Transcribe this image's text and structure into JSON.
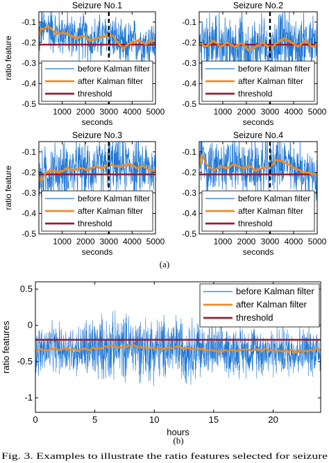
{
  "chart_data": [
    {
      "type": "line",
      "panel": "a1",
      "title": "Seizure No.1",
      "xlabel": "seconds",
      "ylabel": "ratio feature",
      "xlim": [
        0,
        5000
      ],
      "ylim": [
        -0.5,
        -0.05
      ],
      "xticks": [
        1000,
        2000,
        3000,
        4000,
        5000
      ],
      "yticks": [
        -0.1,
        -0.2,
        -0.3,
        -0.4,
        -0.5
      ],
      "seizure_marker_x": 3000,
      "threshold": -0.21,
      "legend": [
        "before Kalman filter",
        "after Kalman filter",
        "threshold"
      ],
      "legend_position": "bottom",
      "series": [
        {
          "name": "before Kalman filter",
          "color": "#1f77d4",
          "noise": 0.1
        },
        {
          "name": "after Kalman filter",
          "color": "#f08a24",
          "x": [
            0,
            100,
            200,
            400,
            600,
            800,
            1000,
            1300,
            1600,
            1900,
            2200,
            2500,
            2800,
            3000,
            3200,
            3400,
            3600,
            3800,
            4000,
            4300,
            4600,
            4800,
            5000
          ],
          "y": [
            -0.17,
            -0.13,
            -0.14,
            -0.12,
            -0.14,
            -0.16,
            -0.15,
            -0.16,
            -0.18,
            -0.17,
            -0.19,
            -0.18,
            -0.17,
            -0.16,
            -0.17,
            -0.2,
            -0.23,
            -0.21,
            -0.2,
            -0.19,
            -0.21,
            -0.19,
            -0.2
          ]
        },
        {
          "name": "threshold",
          "color": "#9b1b30",
          "x": [
            0,
            5000
          ],
          "y": [
            -0.21,
            -0.21
          ]
        }
      ]
    },
    {
      "type": "line",
      "panel": "a2",
      "title": "Seizure No.2",
      "xlabel": "seconds",
      "ylabel": "",
      "xlim": [
        0,
        5000
      ],
      "ylim": [
        -0.5,
        -0.05
      ],
      "xticks": [
        1000,
        2000,
        3000,
        4000,
        5000
      ],
      "yticks": [
        -0.1,
        -0.2,
        -0.3,
        -0.4,
        -0.5
      ],
      "seizure_marker_x": 3000,
      "threshold": -0.21,
      "legend": [
        "before Kalman filter",
        "after Kalman filter",
        "threshold"
      ],
      "legend_position": "bottom",
      "series": [
        {
          "name": "before Kalman filter",
          "color": "#1f77d4",
          "noise": 0.13
        },
        {
          "name": "after Kalman filter",
          "color": "#f08a24",
          "x": [
            0,
            300,
            600,
            900,
            1200,
            1500,
            1800,
            2100,
            2400,
            2700,
            3000,
            3300,
            3600,
            3900,
            4200,
            4500,
            4800,
            5000
          ],
          "y": [
            -0.2,
            -0.22,
            -0.19,
            -0.22,
            -0.2,
            -0.22,
            -0.2,
            -0.24,
            -0.22,
            -0.2,
            -0.23,
            -0.2,
            -0.18,
            -0.2,
            -0.22,
            -0.19,
            -0.22,
            -0.21
          ]
        },
        {
          "name": "threshold",
          "color": "#9b1b30",
          "x": [
            0,
            5000
          ],
          "y": [
            -0.21,
            -0.21
          ]
        }
      ]
    },
    {
      "type": "line",
      "panel": "a3",
      "title": "Seizure No.3",
      "xlabel": "seconds",
      "ylabel": "ratio feature",
      "xlim": [
        0,
        5000
      ],
      "ylim": [
        -0.5,
        -0.05
      ],
      "xticks": [
        1000,
        2000,
        3000,
        4000,
        5000
      ],
      "yticks": [
        -0.1,
        -0.2,
        -0.3,
        -0.4,
        -0.5
      ],
      "seizure_marker_x": 3000,
      "threshold": -0.21,
      "legend": [
        "before Kalman filter",
        "after Kalman filter",
        "threshold"
      ],
      "legend_position": "bottom",
      "series": [
        {
          "name": "before Kalman filter",
          "color": "#1f77d4",
          "noise": 0.12
        },
        {
          "name": "after Kalman filter",
          "color": "#f08a24",
          "x": [
            0,
            100,
            300,
            600,
            900,
            1200,
            1500,
            1800,
            2100,
            2400,
            2700,
            3000,
            3300,
            3600,
            3900,
            4200,
            4500,
            4800,
            5000
          ],
          "y": [
            -0.22,
            -0.24,
            -0.2,
            -0.19,
            -0.2,
            -0.18,
            -0.19,
            -0.18,
            -0.19,
            -0.17,
            -0.18,
            -0.16,
            -0.17,
            -0.17,
            -0.16,
            -0.18,
            -0.17,
            -0.19,
            -0.19
          ]
        },
        {
          "name": "threshold",
          "color": "#9b1b30",
          "x": [
            0,
            5000
          ],
          "y": [
            -0.21,
            -0.21
          ]
        }
      ]
    },
    {
      "type": "line",
      "panel": "a4",
      "title": "Seizure No.4",
      "xlabel": "seconds",
      "ylabel": "",
      "xlim": [
        0,
        5000
      ],
      "ylim": [
        -0.5,
        -0.05
      ],
      "xticks": [
        1000,
        2000,
        3000,
        4000,
        5000
      ],
      "yticks": [
        -0.1,
        -0.2,
        -0.3,
        -0.4,
        -0.5
      ],
      "seizure_marker_x": 3000,
      "threshold": -0.21,
      "legend": [
        "before Kalman filter",
        "after Kalman filter",
        "threshold"
      ],
      "legend_position": "bottom",
      "series": [
        {
          "name": "before Kalman filter",
          "color": "#1f77d4",
          "noise": 0.12
        },
        {
          "name": "after Kalman filter",
          "color": "#f08a24",
          "x": [
            0,
            100,
            300,
            600,
            900,
            1200,
            1500,
            1800,
            2100,
            2400,
            2700,
            3000,
            3300,
            3600,
            3900,
            4200,
            4500,
            4800,
            5000
          ],
          "y": [
            -0.17,
            -0.11,
            -0.16,
            -0.19,
            -0.17,
            -0.18,
            -0.16,
            -0.18,
            -0.17,
            -0.19,
            -0.18,
            -0.17,
            -0.14,
            -0.15,
            -0.17,
            -0.19,
            -0.2,
            -0.21,
            -0.21
          ]
        },
        {
          "name": "threshold",
          "color": "#9b1b30",
          "x": [
            0,
            5000
          ],
          "y": [
            -0.21,
            -0.21
          ]
        }
      ]
    },
    {
      "type": "line",
      "panel": "b",
      "title": "",
      "xlabel": "hours",
      "ylabel": "ratio features",
      "xlim": [
        0,
        24
      ],
      "ylim": [
        -1.2,
        0.6
      ],
      "xticks": [
        0,
        5,
        10,
        15,
        20
      ],
      "yticks": [
        0.5,
        0,
        -0.5,
        -1
      ],
      "threshold": -0.2,
      "legend": [
        "before Kalman filter",
        "after Kalman filter",
        "threshold"
      ],
      "legend_position": "top-right",
      "series": [
        {
          "name": "before Kalman filter",
          "color": "#1f77d4",
          "noise": 0.3
        },
        {
          "name": "after Kalman filter",
          "color": "#f08a24",
          "x": [
            0,
            2,
            4,
            6,
            8,
            10,
            12,
            14,
            16,
            18,
            20,
            22,
            24
          ],
          "y": [
            -0.35,
            -0.32,
            -0.34,
            -0.3,
            -0.28,
            -0.32,
            -0.3,
            -0.33,
            -0.36,
            -0.34,
            -0.35,
            -0.36,
            -0.34
          ]
        },
        {
          "name": "threshold",
          "color": "#9b1b30",
          "x": [
            0,
            24
          ],
          "y": [
            -0.2,
            -0.2
          ]
        }
      ]
    }
  ],
  "panel_labels": {
    "a": "(a)",
    "b": "(b)"
  },
  "caption": "Fig. 3.   Examples to illustrate the ratio features selected for seizure"
}
